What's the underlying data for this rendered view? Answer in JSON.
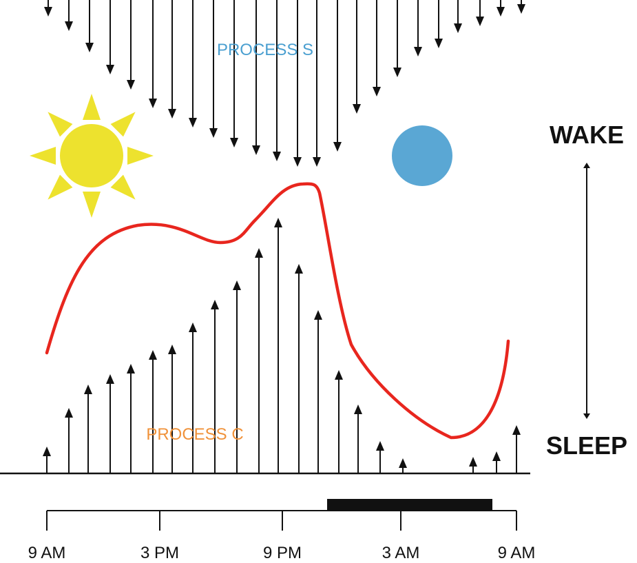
{
  "labels": {
    "process_s": "PROCESS S",
    "process_c": "PROCESS C",
    "wake": "WAKE",
    "sleep": "SLEEP"
  },
  "axis_ticks": [
    "9 AM",
    "3 PM",
    "9 PM",
    "3 AM",
    "9 AM"
  ],
  "colors": {
    "process_s": "#4a9fd0",
    "process_c": "#f0923a",
    "curve": "#e8261e",
    "sun": "#ede22e",
    "moon": "#5aa7d4",
    "ink": "#111111"
  },
  "icons": [
    "sun-icon",
    "moon-icon",
    "double-arrow-icon"
  ]
}
